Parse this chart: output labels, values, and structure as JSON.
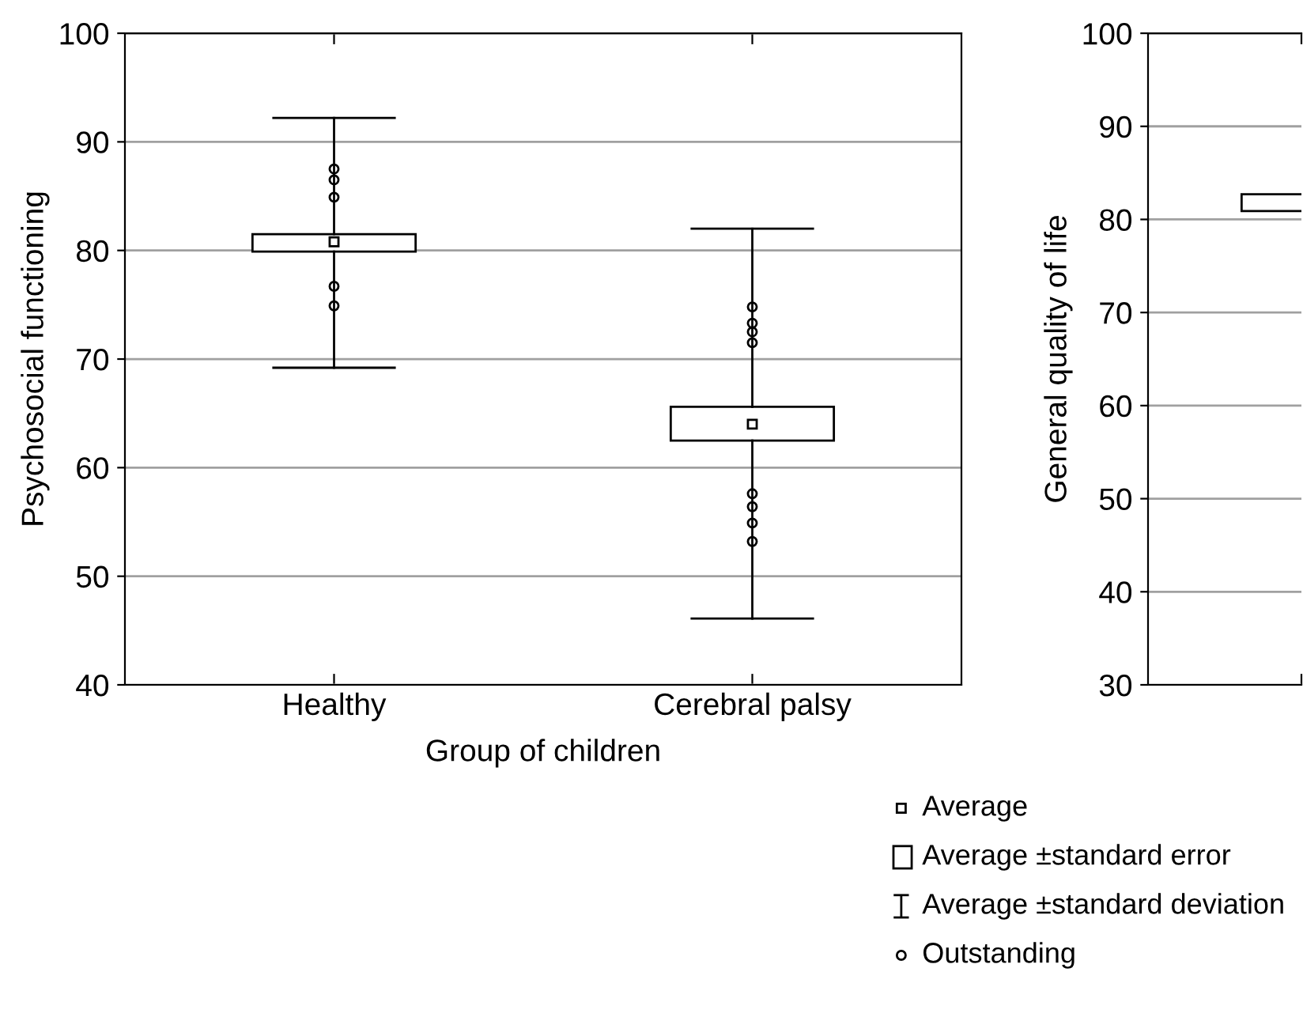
{
  "chart_data": [
    {
      "type": "box",
      "xlabel": "Group of children",
      "ylabel": "Psychosocial functioning",
      "categories": [
        "Healthy",
        "Cerebral palsy"
      ],
      "boxes": [
        {
          "low": 69.2,
          "q1": 79.9,
          "q3": 81.5,
          "high": 92.2,
          "mean": 80.8,
          "outliers": [
            87.5,
            86.5,
            84.9,
            76.7,
            74.9
          ]
        },
        {
          "low": 46.1,
          "q1": 62.5,
          "q3": 65.6,
          "high": 82.0,
          "mean": 64.0,
          "outliers": [
            74.8,
            73.3,
            72.5,
            71.5,
            57.6,
            56.4,
            54.9,
            53.2
          ]
        }
      ],
      "ylim": [
        40,
        100
      ],
      "yticks": [
        40,
        50,
        60,
        70,
        80,
        90,
        100
      ],
      "grid": "y",
      "color": "#000000",
      "annotations": [
        "Average",
        "Average ±standard error",
        "Average ±standard deviation",
        "Outstanding"
      ]
    },
    {
      "type": "bar",
      "ylabel": "General quality of life",
      "categories": [
        null
      ],
      "values": [
        1.8
      ],
      "base": [
        80.9
      ],
      "color": "#ffffff",
      "ylim": [
        30,
        100
      ],
      "yticks": [
        30,
        40,
        50,
        60,
        70,
        80,
        90,
        100
      ],
      "grid": "y"
    }
  ]
}
